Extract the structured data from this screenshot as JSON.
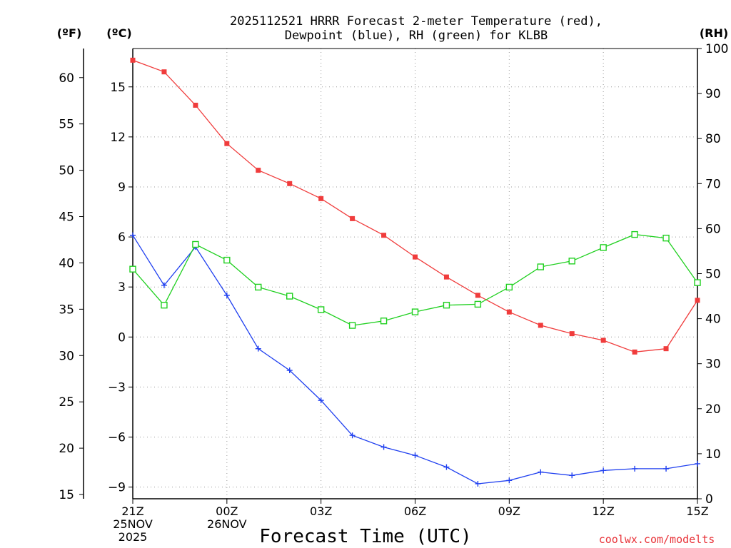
{
  "chart_data": {
    "type": "line",
    "title_line1": "2025112521 HRRR Forecast 2-meter Temperature (red),",
    "title_line2": "Dewpoint (blue), RH (green) for KLBB",
    "unit_f": "(ºF)",
    "unit_c": "(ºC)",
    "unit_rh": "(RH)",
    "xlabel": "Forecast Time (UTC)",
    "credit": "coolwx.com/modelts",
    "x_hours": [
      0,
      1,
      2,
      3,
      4,
      5,
      6,
      7,
      8,
      9,
      10,
      11,
      12,
      13,
      14,
      15,
      16,
      17,
      18
    ],
    "xlim": [
      0,
      18
    ],
    "x_ticks": [
      {
        "h": 0,
        "lines": [
          "21Z",
          "25NOV",
          "2025"
        ]
      },
      {
        "h": 3,
        "lines": [
          "00Z",
          "26NOV"
        ]
      },
      {
        "h": 6,
        "lines": [
          "03Z"
        ]
      },
      {
        "h": 9,
        "lines": [
          "06Z"
        ]
      },
      {
        "h": 12,
        "lines": [
          "09Z"
        ]
      },
      {
        "h": 15,
        "lines": [
          "12Z"
        ]
      },
      {
        "h": 18,
        "lines": [
          "15Z"
        ]
      }
    ],
    "ylim_c": [
      -9.7,
      17.3
    ],
    "y_ticks_c": [
      "-9",
      "-6",
      "-3",
      "0",
      "3",
      "6",
      "9",
      "12",
      "15"
    ],
    "ylim_f": [
      14.54,
      63.14
    ],
    "y_ticks_f": [
      "15",
      "20",
      "25",
      "30",
      "35",
      "40",
      "45",
      "50",
      "55",
      "60"
    ],
    "ylim_rh": [
      0,
      100
    ],
    "y_ticks_rh": [
      "0",
      "10",
      "20",
      "30",
      "40",
      "50",
      "60",
      "70",
      "80",
      "90",
      "100"
    ],
    "series": [
      {
        "name": "Temperature",
        "axis": "c",
        "color": "#f03c3c",
        "marker": "filled-square",
        "values": [
          16.6,
          15.9,
          13.9,
          11.6,
          10.0,
          9.2,
          8.3,
          7.1,
          6.1,
          4.8,
          3.6,
          2.5,
          1.5,
          0.7,
          0.2,
          -0.2,
          -0.9,
          -0.7,
          2.2
        ]
      },
      {
        "name": "Dewpoint",
        "axis": "c",
        "color": "#2040f0",
        "marker": "plus",
        "values": [
          6.1,
          3.1,
          5.4,
          2.5,
          -0.7,
          -2.0,
          -3.8,
          -5.9,
          -6.6,
          -7.1,
          -7.8,
          -8.8,
          -8.6,
          -8.1,
          -8.3,
          -8.0,
          -7.9,
          -7.9,
          -7.6
        ]
      },
      {
        "name": "RH",
        "axis": "rh",
        "color": "#20d020",
        "marker": "open-square",
        "values": [
          51,
          43,
          56.5,
          53,
          47,
          45,
          42,
          38.5,
          39.5,
          41.5,
          43,
          43.2,
          47,
          51.5,
          52.8,
          55.8,
          58.7,
          57.9,
          48
        ]
      }
    ]
  }
}
